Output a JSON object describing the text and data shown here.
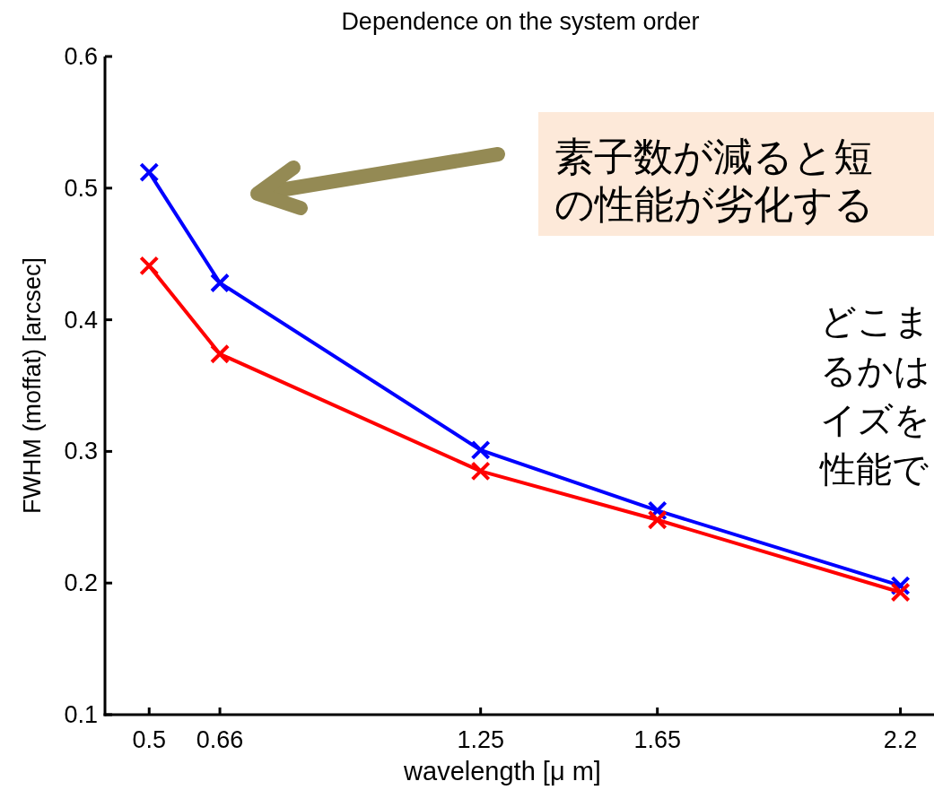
{
  "chart_data": {
    "type": "line",
    "title": "Dependence on the system order",
    "xlabel": "wavelength [μ m]",
    "ylabel": "FWHM (moffat) [arcsec]",
    "x": [
      0.5,
      0.66,
      1.25,
      1.65,
      2.2
    ],
    "series": [
      {
        "color": "#0000ff",
        "values": [
          0.512,
          0.428,
          0.301,
          0.255,
          0.198
        ]
      },
      {
        "color": "#ff0000",
        "values": [
          0.441,
          0.374,
          0.285,
          0.248,
          0.193
        ]
      }
    ],
    "xlim": [
      0.4,
      2.28
    ],
    "ylim": [
      0.1,
      0.6
    ],
    "xticks": [
      0.5,
      0.66,
      1.25,
      1.65,
      2.2
    ],
    "yticks": [
      0.1,
      0.2,
      0.3,
      0.4,
      0.5,
      0.6
    ],
    "marker": "cross",
    "line_style": "solid",
    "grid": false,
    "annotations": [
      "素子数が減ると短",
      "の性能が劣化する",
      "どこま",
      "るかは",
      "イズを",
      "性能で"
    ]
  }
}
